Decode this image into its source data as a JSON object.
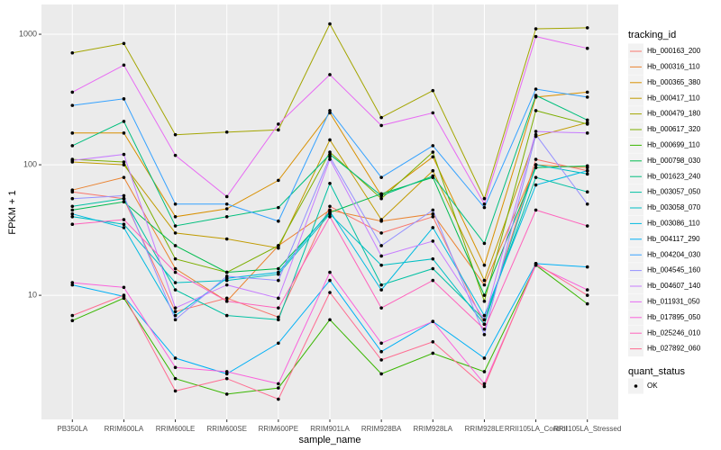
{
  "chart_data": {
    "type": "line",
    "x_label": "sample_name",
    "y_label": "FPKM + 1",
    "log_scale": true,
    "grid": true,
    "legend_title": "tracking_id",
    "legend_position": "right",
    "point_legend": {
      "title": "quant_status",
      "labels": [
        "OK"
      ]
    },
    "point_color": "#000000",
    "ylim": [
      1.12,
      1690
    ],
    "yticks": [
      10,
      100,
      1000
    ],
    "categories": [
      "PB350LA",
      "RRIM600LA",
      "RRIM600LE",
      "RRIM600SE",
      "RRIM600PE",
      "RRIM901LA",
      "RRIM928BA",
      "RRIM928LA",
      "RRIM928LE",
      "RRII105LA_Control",
      "RRII105LA_Stressed"
    ],
    "series": [
      {
        "name": "Hb_000163_200",
        "color": "#F8766D",
        "values": [
          62,
          55,
          7.5,
          9.5,
          6.8,
          48,
          30,
          40,
          6,
          110,
          90
        ]
      },
      {
        "name": "Hb_000316_110",
        "color": "#EA8331",
        "values": [
          64,
          80,
          16,
          9,
          24,
          45,
          37,
          42,
          12,
          100,
          95
        ]
      },
      {
        "name": "Hb_000365_380",
        "color": "#D89000",
        "values": [
          175,
          175,
          40,
          46,
          76,
          250,
          58,
          115,
          17,
          330,
          360
        ]
      },
      {
        "name": "Hb_000417_110",
        "color": "#C09B00",
        "values": [
          105,
          100,
          30,
          27,
          23,
          155,
          38,
          90,
          13,
          165,
          210
        ]
      },
      {
        "name": "Hb_000479_180",
        "color": "#A3A500",
        "values": [
          720,
          850,
          170,
          178,
          185,
          1200,
          230,
          370,
          55,
          1100,
          1120
        ]
      },
      {
        "name": "Hb_000617_320",
        "color": "#7CAE00",
        "values": [
          110,
          105,
          19,
          15,
          24,
          125,
          55,
          125,
          9,
          260,
          205
        ]
      },
      {
        "name": "Hb_000699_110",
        "color": "#39B600",
        "values": [
          6.4,
          9.5,
          2.3,
          1.75,
          1.95,
          6.5,
          2.5,
          3.6,
          2.6,
          17,
          8.6
        ]
      },
      {
        "name": "Hb_000798_030",
        "color": "#00BB4E",
        "values": [
          45,
          52,
          24,
          15,
          16,
          43,
          60,
          80,
          10,
          95,
          98
        ]
      },
      {
        "name": "Hb_001623_240",
        "color": "#00BF7D",
        "values": [
          140,
          215,
          34,
          40,
          47,
          120,
          58,
          82,
          25,
          340,
          220
        ]
      },
      {
        "name": "Hb_003057_050",
        "color": "#00C1A3",
        "values": [
          48,
          55,
          11,
          7,
          6.5,
          72,
          12,
          16,
          6.5,
          80,
          62
        ]
      },
      {
        "name": "Hb_003058_070",
        "color": "#00BFC4",
        "values": [
          40,
          35,
          12.5,
          13,
          14.5,
          42,
          17,
          19,
          6,
          100,
          85
        ]
      },
      {
        "name": "Hb_003086_110",
        "color": "#00BAE0",
        "values": [
          42,
          33,
          7,
          13.5,
          15,
          44,
          11,
          33,
          7,
          70,
          90
        ]
      },
      {
        "name": "Hb_004117_290",
        "color": "#00B0F6",
        "values": [
          12,
          9.8,
          3.3,
          2.5,
          4.3,
          13,
          3.7,
          6.3,
          3.3,
          17.5,
          16.5
        ]
      },
      {
        "name": "Hb_004204_030",
        "color": "#35A2FF",
        "values": [
          285,
          320,
          50,
          50,
          37,
          260,
          80,
          140,
          47,
          380,
          330
        ]
      },
      {
        "name": "Hb_004545_160",
        "color": "#9590FF",
        "values": [
          55,
          58,
          6.5,
          14,
          13,
          115,
          24,
          45,
          5,
          170,
          50
        ]
      },
      {
        "name": "Hb_004607_140",
        "color": "#C77CFF",
        "values": [
          108,
          120,
          8,
          12,
          9.5,
          110,
          20,
          26,
          6.5,
          180,
          175
        ]
      },
      {
        "name": "Hb_011931_050",
        "color": "#E76BF3",
        "values": [
          360,
          580,
          118,
          57,
          205,
          490,
          200,
          250,
          50,
          960,
          780
        ]
      },
      {
        "name": "Hb_017895_050",
        "color": "#FA62DB",
        "values": [
          12.5,
          11.5,
          2.8,
          2.6,
          2.1,
          15,
          4.3,
          6.3,
          2.1,
          17,
          11
        ]
      },
      {
        "name": "Hb_025246_010",
        "color": "#FF62BC",
        "values": [
          35,
          38,
          15,
          9,
          8,
          40,
          8,
          13,
          5.5,
          45,
          34
        ]
      },
      {
        "name": "Hb_027892_060",
        "color": "#FF6C91",
        "values": [
          7,
          10,
          1.85,
          2.3,
          1.6,
          10.5,
          3.2,
          4.4,
          2.0,
          17.5,
          10
        ]
      }
    ]
  }
}
